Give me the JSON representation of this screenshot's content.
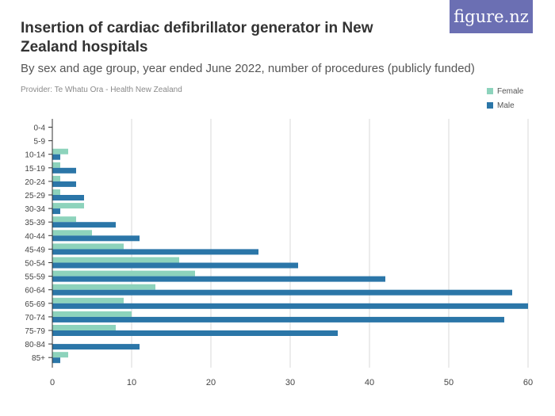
{
  "header": {
    "title": "Insertion of cardiac defibrillator generator in New Zealand hospitals",
    "subtitle": "By sex and age group, year ended June 2022, number of procedures (publicly funded)",
    "provider": "Provider: Te Whatu Ora - Health New Zealand",
    "logo": "figure.nz"
  },
  "colors": {
    "female": "#8dd3bc",
    "male": "#2b76a8",
    "grid": "#d8d8d8",
    "axis": "#333333"
  },
  "chart_data": {
    "type": "bar",
    "orientation": "horizontal",
    "categories": [
      "0-4",
      "5-9",
      "10-14",
      "15-19",
      "20-24",
      "25-29",
      "30-34",
      "35-39",
      "40-44",
      "45-49",
      "50-54",
      "55-59",
      "60-64",
      "65-69",
      "70-74",
      "75-79",
      "80-84",
      "85+"
    ],
    "series": [
      {
        "name": "Female",
        "values": [
          0,
          0,
          2,
          1,
          1,
          1,
          4,
          3,
          5,
          9,
          16,
          18,
          13,
          9,
          10,
          8,
          0,
          2
        ]
      },
      {
        "name": "Male",
        "values": [
          0,
          0,
          1,
          3,
          3,
          4,
          1,
          8,
          11,
          26,
          31,
          42,
          58,
          60,
          57,
          36,
          11,
          1
        ]
      }
    ],
    "xlim": [
      0,
      60
    ],
    "xticks": [
      0,
      10,
      20,
      30,
      40,
      50,
      60
    ],
    "grid": true,
    "legend": "top-right"
  }
}
